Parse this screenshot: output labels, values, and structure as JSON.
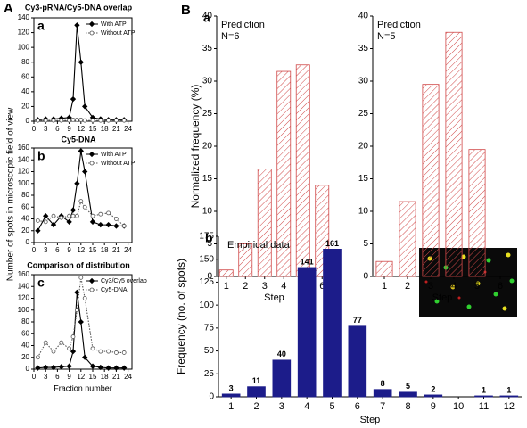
{
  "panel_labels": [
    "A",
    "B"
  ],
  "chart_data": [
    {
      "type": "line",
      "panel_label": "a",
      "title": "Cy3-pRNA/Cy5-DNA overlap",
      "ylabel": "Number of spots in microscopic field of view",
      "x": [
        1,
        3,
        5,
        7,
        9,
        10,
        11,
        12,
        13,
        15,
        17,
        19,
        21,
        23
      ],
      "xlim": [
        0,
        25
      ],
      "xticks": [
        0,
        3,
        6,
        9,
        12,
        15,
        18,
        21,
        24
      ],
      "ylim": [
        0,
        140
      ],
      "yticks": [
        0,
        20,
        40,
        60,
        80,
        100,
        120,
        140
      ],
      "series": [
        {
          "name": "With ATP",
          "color": "#000000",
          "marker": "diamond",
          "linestyle": "solid",
          "values": [
            2,
            3,
            3,
            4,
            5,
            30,
            130,
            80,
            20,
            5,
            3,
            2,
            2,
            2
          ]
        },
        {
          "name": "Without ATP",
          "color": "#555555",
          "marker": "circle",
          "linestyle": "dotted",
          "values": [
            1,
            1,
            1,
            1,
            1,
            2,
            2,
            2,
            1,
            1,
            1,
            1,
            1,
            1
          ]
        }
      ]
    },
    {
      "type": "line",
      "panel_label": "b",
      "title": "Cy5-DNA",
      "x": [
        1,
        3,
        5,
        7,
        9,
        10,
        11,
        12,
        13,
        15,
        17,
        19,
        21,
        23
      ],
      "xlim": [
        0,
        25
      ],
      "xticks": [
        0,
        3,
        6,
        9,
        12,
        15,
        18,
        21,
        24
      ],
      "ylim": [
        0,
        160
      ],
      "yticks": [
        0,
        20,
        40,
        60,
        80,
        100,
        120,
        140,
        160
      ],
      "series": [
        {
          "name": "With ATP",
          "color": "#000000",
          "marker": "diamond",
          "linestyle": "solid",
          "values": [
            20,
            45,
            30,
            45,
            35,
            55,
            100,
            155,
            120,
            35,
            30,
            30,
            28,
            28
          ]
        },
        {
          "name": "Without ATP",
          "color": "#555555",
          "marker": "circle",
          "linestyle": "dotted",
          "values": [
            37,
            35,
            45,
            42,
            45,
            45,
            45,
            70,
            60,
            45,
            48,
            50,
            40,
            28
          ]
        }
      ]
    },
    {
      "type": "line",
      "panel_label": "c",
      "title": "Comparison of distribution",
      "xlabel": "Fraction number",
      "x": [
        1,
        3,
        5,
        7,
        9,
        10,
        11,
        12,
        13,
        15,
        17,
        19,
        21,
        23
      ],
      "xlim": [
        0,
        25
      ],
      "xticks": [
        0,
        3,
        6,
        9,
        12,
        15,
        18,
        21,
        24
      ],
      "ylim": [
        0,
        160
      ],
      "yticks": [
        0,
        20,
        40,
        60,
        80,
        100,
        120,
        140,
        160
      ],
      "series": [
        {
          "name": "Cy3/Cy5 overlap",
          "color": "#000000",
          "marker": "diamond",
          "linestyle": "solid",
          "values": [
            2,
            3,
            3,
            4,
            5,
            30,
            130,
            80,
            20,
            5,
            3,
            2,
            2,
            2
          ]
        },
        {
          "name": "Cy5-DNA",
          "color": "#555555",
          "marker": "circle",
          "linestyle": "dotted",
          "values": [
            20,
            45,
            30,
            45,
            35,
            55,
            100,
            155,
            120,
            35,
            30,
            30,
            28,
            28
          ]
        }
      ]
    },
    {
      "type": "bar",
      "panel_label": "a",
      "annotation": [
        "Prediction",
        "N=6"
      ],
      "ylabel": "Normalized frequency (%)",
      "xlabel": "Step",
      "categories": [
        "1",
        "2",
        "3",
        "4",
        "5",
        "6"
      ],
      "values": [
        1,
        5,
        16.5,
        31.5,
        32.5,
        14
      ],
      "color": "#d04848",
      "hatch": true,
      "ylim": [
        0,
        40
      ],
      "yticks": [
        0,
        5,
        10,
        15,
        20,
        25,
        30,
        35,
        40
      ]
    },
    {
      "type": "bar",
      "annotation": [
        "Prediction",
        "N=5"
      ],
      "xlabel": "Step",
      "categories": [
        "1",
        "2",
        "3",
        "4",
        "5",
        "6"
      ],
      "values": [
        2.3,
        11.5,
        29.5,
        37.5,
        19.5,
        null
      ],
      "color": "#d04848",
      "hatch": true,
      "ylim": [
        0,
        40
      ],
      "yticks": [
        0,
        5,
        10,
        15,
        20,
        25,
        30,
        35,
        40
      ]
    },
    {
      "type": "bar",
      "panel_label": "b",
      "annotation": [
        "Empirical data"
      ],
      "ylabel": "Frequency (no. of spots)",
      "xlabel": "Step",
      "categories": [
        "1",
        "2",
        "3",
        "4",
        "5",
        "6",
        "7",
        "8",
        "9",
        "10",
        "11",
        "12"
      ],
      "values": [
        3,
        11,
        40,
        141,
        161,
        77,
        8,
        5,
        2,
        null,
        1,
        1
      ],
      "show_values": true,
      "color": "#1c1c8a",
      "hatch": false,
      "ylim": [
        0,
        175
      ],
      "yticks": [
        0,
        25,
        50,
        75,
        100,
        125,
        150,
        175
      ]
    }
  ]
}
